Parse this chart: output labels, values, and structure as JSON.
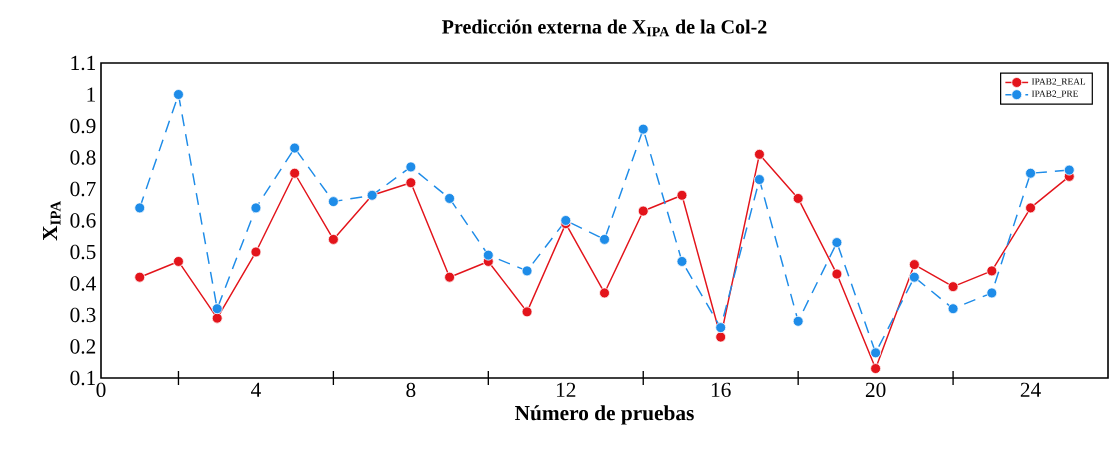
{
  "chart_data": {
    "type": "line",
    "title": "Predicción externa de X$_{IPA}$ de la Col-2",
    "xlabel": "Número de pruebas",
    "ylabel": "X$_{IPA}$",
    "x": [
      1,
      2,
      3,
      4,
      5,
      6,
      7,
      8,
      9,
      10,
      11,
      12,
      13,
      14,
      15,
      16,
      17,
      18,
      19,
      20,
      21,
      22,
      23,
      24,
      25
    ],
    "series": [
      {
        "name": "IPAB2_REAL",
        "color": "#e3141b",
        "line_style": "solid",
        "values": [
          0.42,
          0.47,
          0.29,
          0.5,
          0.75,
          0.54,
          0.68,
          0.72,
          0.42,
          0.47,
          0.31,
          0.59,
          0.37,
          0.63,
          0.68,
          0.23,
          0.81,
          0.67,
          0.43,
          0.13,
          0.46,
          0.39,
          0.44,
          0.64,
          0.74
        ]
      },
      {
        "name": "IPAB2_PRE",
        "color": "#1e8ce8",
        "line_style": "dashed",
        "values": [
          0.64,
          1.0,
          0.32,
          0.64,
          0.83,
          0.66,
          0.68,
          0.77,
          0.67,
          0.49,
          0.44,
          0.6,
          0.54,
          0.89,
          0.47,
          0.26,
          0.73,
          0.28,
          0.53,
          0.18,
          0.42,
          0.32,
          0.37,
          0.75,
          0.76
        ]
      }
    ],
    "xlim": [
      0,
      26
    ],
    "ylim": [
      0.1,
      1.1
    ],
    "xticks": [
      0,
      {
        "value": 2,
        "label": null
      },
      4,
      {
        "value": 6,
        "label": null
      },
      8,
      {
        "value": 10,
        "label": null
      },
      12,
      {
        "value": 14,
        "label": null
      },
      16,
      {
        "value": 18,
        "label": null
      },
      20,
      {
        "value": 22,
        "label": null
      },
      24
    ],
    "yticks": [
      0.1,
      0.2,
      0.3,
      0.4,
      0.5,
      0.6,
      0.7,
      0.8,
      0.9,
      1,
      1.1
    ],
    "grid": false,
    "legend": "top right",
    "marker": "circle"
  }
}
